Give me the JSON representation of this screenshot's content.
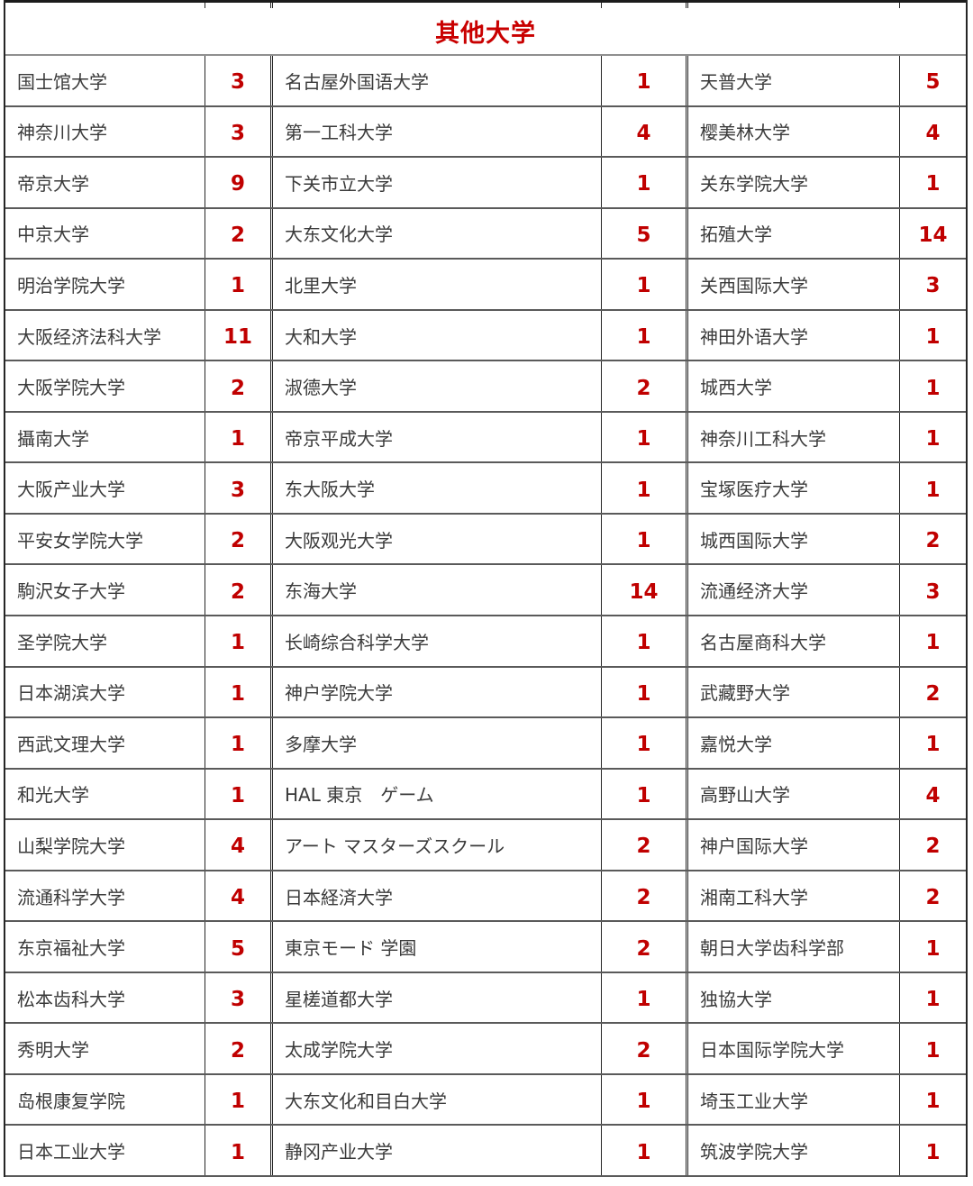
{
  "colors": {
    "title_red": "#c90000",
    "count_red": "#c00000",
    "name_text": "#3a3a3a",
    "border_dark": "#262626",
    "border_gray": "#8f8f8f"
  },
  "table": {
    "title": "其他大学",
    "rows": [
      {
        "cols": [
          {
            "name": "国士馆大学",
            "count": "3"
          },
          {
            "name": "名古屋外国语大学",
            "count": "1"
          },
          {
            "name": "天普大学",
            "count": "5"
          }
        ]
      },
      {
        "cols": [
          {
            "name": "神奈川大学",
            "count": "3"
          },
          {
            "name": "第一工科大学",
            "count": "4"
          },
          {
            "name": "樱美林大学",
            "count": "4"
          }
        ]
      },
      {
        "cols": [
          {
            "name": "帝京大学",
            "count": "9"
          },
          {
            "name": "下关市立大学",
            "count": "1"
          },
          {
            "name": "关东学院大学",
            "count": "1"
          }
        ]
      },
      {
        "cols": [
          {
            "name": "中京大学",
            "count": "2"
          },
          {
            "name": "大东文化大学",
            "count": "5"
          },
          {
            "name": "拓殖大学",
            "count": "14"
          }
        ]
      },
      {
        "cols": [
          {
            "name": "明治学院大学",
            "count": "1"
          },
          {
            "name": "北里大学",
            "count": "1"
          },
          {
            "name": "关西国际大学",
            "count": "3"
          }
        ]
      },
      {
        "cols": [
          {
            "name": "大阪经济法科大学",
            "count": "11"
          },
          {
            "name": "大和大学",
            "count": "1"
          },
          {
            "name": "神田外语大学",
            "count": "1"
          }
        ]
      },
      {
        "cols": [
          {
            "name": "大阪学院大学",
            "count": "2"
          },
          {
            "name": "淑德大学",
            "count": "2"
          },
          {
            "name": "城西大学",
            "count": "1"
          }
        ]
      },
      {
        "cols": [
          {
            "name": "攝南大学",
            "count": "1"
          },
          {
            "name": "帝京平成大学",
            "count": "1"
          },
          {
            "name": "神奈川工科大学",
            "count": "1"
          }
        ]
      },
      {
        "cols": [
          {
            "name": "大阪产业大学",
            "count": "3"
          },
          {
            "name": "东大阪大学",
            "count": "1"
          },
          {
            "name": "宝塚医疗大学",
            "count": "1"
          }
        ]
      },
      {
        "cols": [
          {
            "name": "平安女学院大学",
            "count": "2"
          },
          {
            "name": "大阪观光大学",
            "count": "1"
          },
          {
            "name": "城西国际大学",
            "count": "2"
          }
        ]
      },
      {
        "cols": [
          {
            "name": "駒沢女子大学",
            "count": "2"
          },
          {
            "name": "东海大学",
            "count": "14"
          },
          {
            "name": "流通经济大学",
            "count": "3"
          }
        ]
      },
      {
        "cols": [
          {
            "name": "圣学院大学",
            "count": "1"
          },
          {
            "name": "长崎综合科学大学",
            "count": "1"
          },
          {
            "name": "名古屋商科大学",
            "count": "1"
          }
        ]
      },
      {
        "cols": [
          {
            "name": "日本湖滨大学",
            "count": "1"
          },
          {
            "name": "神户学院大学",
            "count": "1"
          },
          {
            "name": "武藏野大学",
            "count": "2"
          }
        ]
      },
      {
        "cols": [
          {
            "name": "西武文理大学",
            "count": "1"
          },
          {
            "name": "多摩大学",
            "count": "1"
          },
          {
            "name": "嘉悦大学",
            "count": "1"
          }
        ]
      },
      {
        "cols": [
          {
            "name": "和光大学",
            "count": "1"
          },
          {
            "name": "HAL 東京　ゲーム",
            "count": "1"
          },
          {
            "name": "高野山大学",
            "count": "4"
          }
        ]
      },
      {
        "cols": [
          {
            "name": "山梨学院大学",
            "count": "4"
          },
          {
            "name": "アート マスターズスクール",
            "count": "2"
          },
          {
            "name": "神户国际大学",
            "count": "2"
          }
        ]
      },
      {
        "cols": [
          {
            "name": "流通科学大学",
            "count": "4"
          },
          {
            "name": "日本経済大学",
            "count": "2"
          },
          {
            "name": "湘南工科大学",
            "count": "2"
          }
        ]
      },
      {
        "cols": [
          {
            "name": "东京福祉大学",
            "count": "5"
          },
          {
            "name": "東京モード 学園",
            "count": "2"
          },
          {
            "name": "朝日大学齿科学部",
            "count": "1"
          }
        ]
      },
      {
        "cols": [
          {
            "name": "松本齿科大学",
            "count": "3"
          },
          {
            "name": "星槎道都大学",
            "count": "1"
          },
          {
            "name": "独協大学",
            "count": "1"
          }
        ]
      },
      {
        "cols": [
          {
            "name": "秀明大学",
            "count": "2"
          },
          {
            "name": "太成学院大学",
            "count": "2"
          },
          {
            "name": "日本国际学院大学",
            "count": "1"
          }
        ]
      },
      {
        "cols": [
          {
            "name": "岛根康复学院",
            "count": "1"
          },
          {
            "name": "大东文化和目白大学",
            "count": "1"
          },
          {
            "name": "埼玉工业大学",
            "count": "1"
          }
        ]
      },
      {
        "cols": [
          {
            "name": "日本工业大学",
            "count": "1"
          },
          {
            "name": "静冈产业大学",
            "count": "1"
          },
          {
            "name": "筑波学院大学",
            "count": "1"
          }
        ]
      }
    ]
  }
}
